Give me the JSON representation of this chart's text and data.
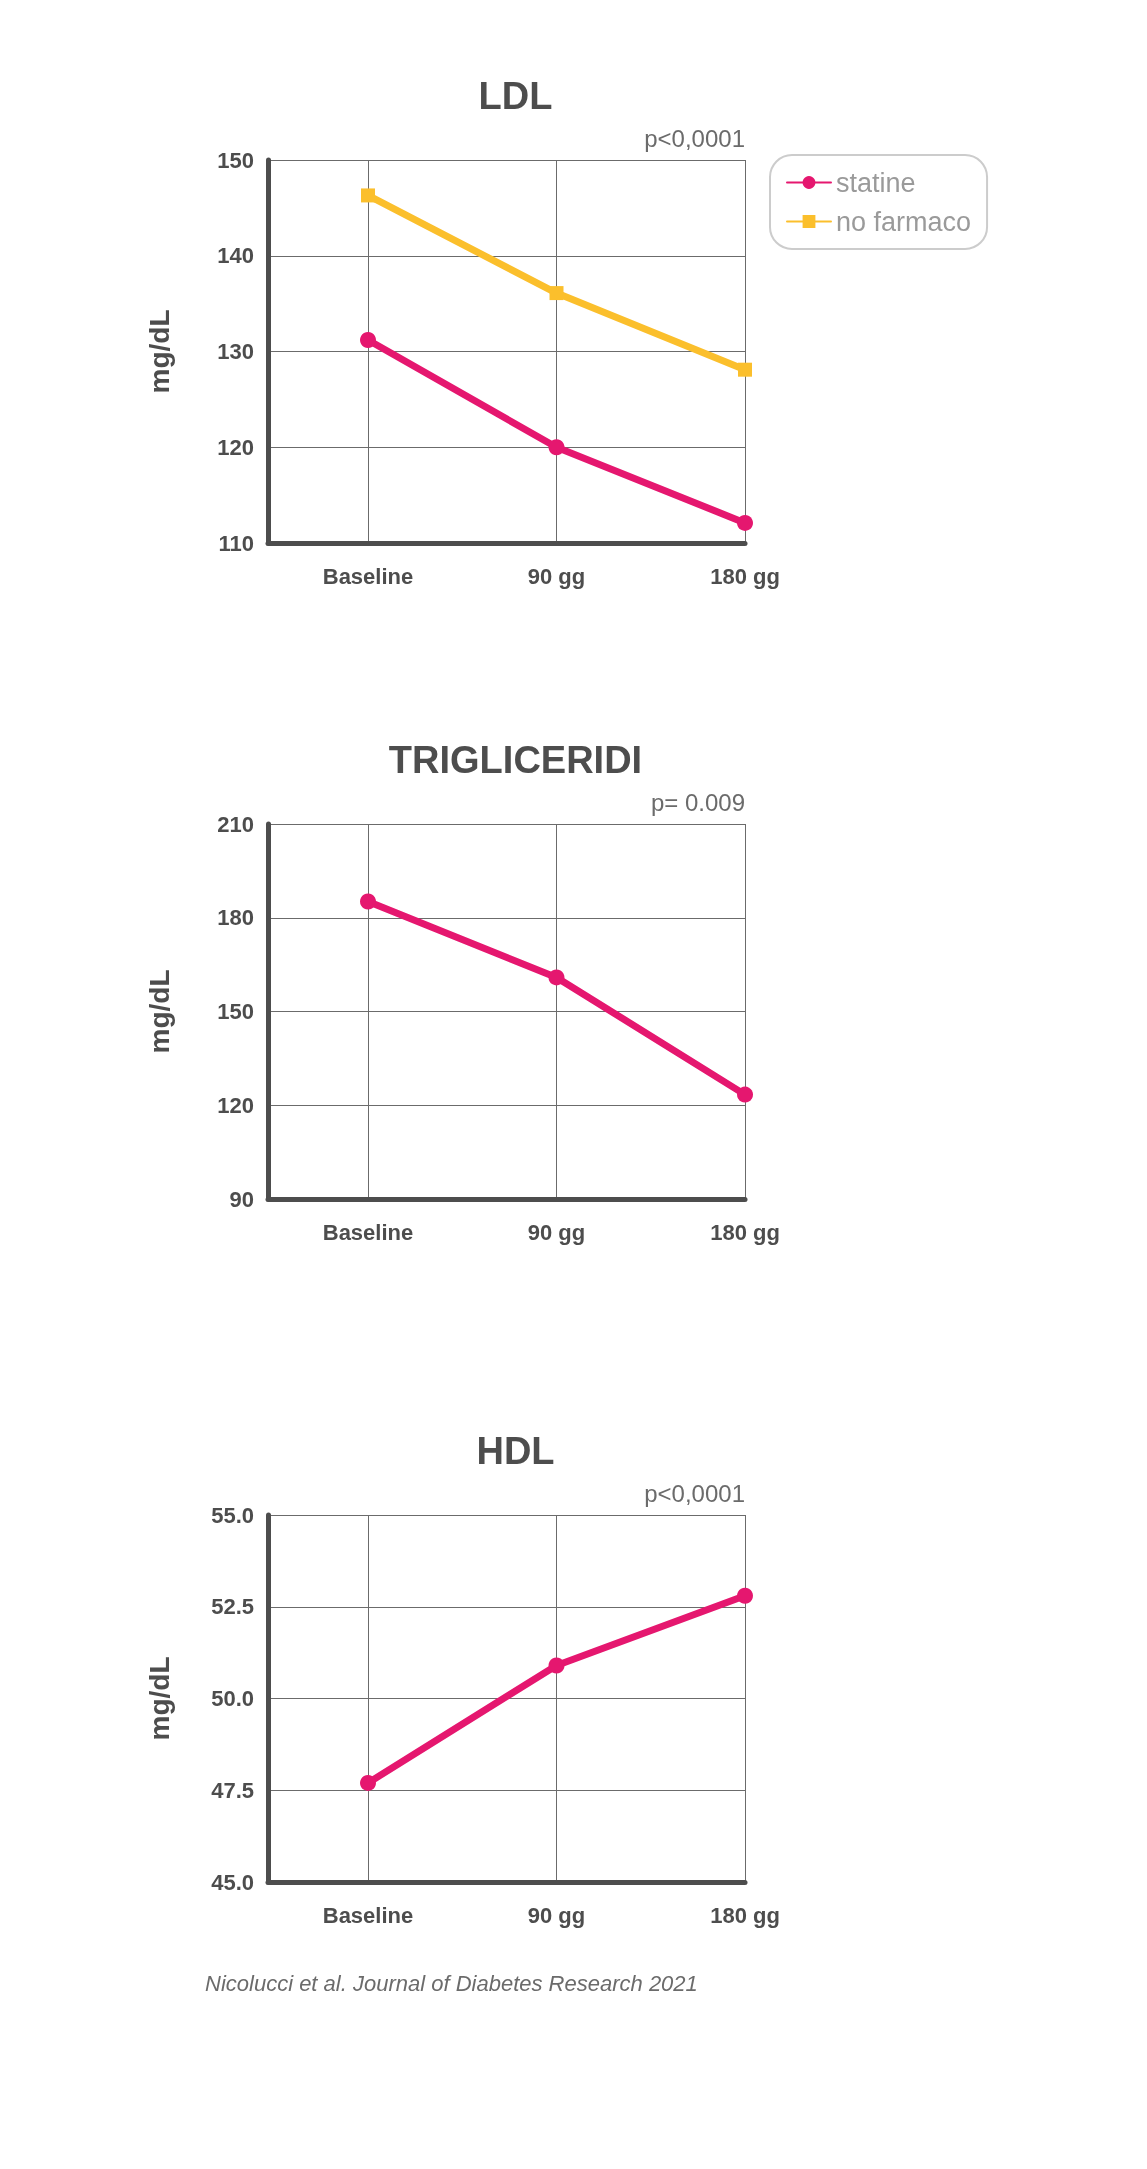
{
  "chart_data": [
    {
      "type": "line",
      "title": "LDL",
      "ylabel": "mg/dL",
      "categories": [
        "Baseline",
        "90 gg",
        "180 gg"
      ],
      "series": [
        {
          "name": "statine",
          "color": "#e5176f",
          "marker": "circle",
          "values": [
            131.2,
            120,
            112.1
          ]
        },
        {
          "name": "no farmaco",
          "color": "#fbbf2c",
          "marker": "square",
          "values": [
            146.3,
            136.1,
            128.1
          ]
        }
      ],
      "ylim": [
        110,
        150
      ],
      "yticks": [
        110,
        120,
        130,
        140,
        150
      ],
      "grid": true,
      "legend": "top right",
      "line_style": "solid",
      "annotations": [
        "p<0,0001"
      ]
    },
    {
      "type": "line",
      "title": "TRIGLICERIDI",
      "ylabel": "mg/dL",
      "categories": [
        "Baseline",
        "90 gg",
        "180 gg"
      ],
      "series": [
        {
          "color": "#e5176f",
          "marker": "circle",
          "values": [
            185.2,
            160.9,
            123.4
          ]
        }
      ],
      "ylim": [
        90,
        210
      ],
      "yticks": [
        90,
        120,
        150,
        180,
        210
      ],
      "grid": true,
      "line_style": "solid",
      "annotations": [
        "p= 0.009"
      ]
    },
    {
      "type": "line",
      "title": "HDL",
      "ylabel": "mg/dL",
      "categories": [
        "Baseline",
        "90 gg",
        "180 gg"
      ],
      "series": [
        {
          "color": "#e5176f",
          "marker": "circle",
          "values": [
            47.7,
            50.9,
            52.8
          ]
        }
      ],
      "ylim": [
        45,
        55
      ],
      "yticks": [
        {
          "value": 45,
          "label": "45.0"
        },
        47.5,
        {
          "value": 50,
          "label": "50.0"
        },
        52.5,
        {
          "value": 55,
          "label": "55.0"
        }
      ],
      "grid": true,
      "line_style": "solid",
      "annotations": [
        "p<0,0001",
        "Nicolucci et al. Journal of Diabetes Research 2021"
      ]
    }
  ]
}
